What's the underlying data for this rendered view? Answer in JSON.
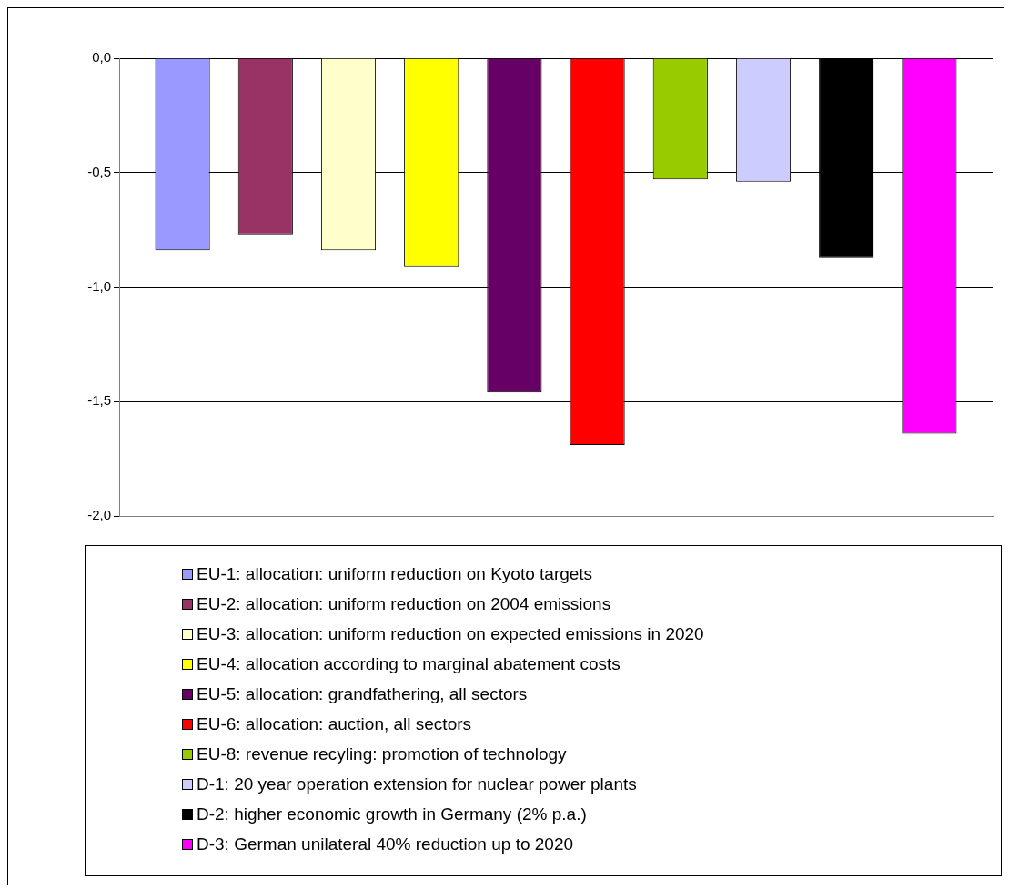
{
  "chart_data": {
    "type": "bar",
    "categories": [
      null
    ],
    "series": [
      {
        "name": "EU-1: allocation: uniform reduction on Kyoto targets",
        "color": "#9999ff",
        "values": [
          -0.84
        ]
      },
      {
        "name": "EU-2: allocation: uniform reduction on 2004 emissions",
        "color": "#993366",
        "values": [
          -0.77
        ]
      },
      {
        "name": "EU-3: allocation: uniform reduction on expected emissions in 2020",
        "color": "#ffffcc",
        "values": [
          -0.84
        ]
      },
      {
        "name": "EU-4: allocation according to marginal abatement costs",
        "color": "#ffff00",
        "values": [
          -0.91
        ]
      },
      {
        "name": "EU-5: allocation: grandfathering, all sectors",
        "color": "#660066",
        "values": [
          -1.46
        ]
      },
      {
        "name": "EU-6: allocation: auction, all sectors",
        "color": "#ff0000",
        "values": [
          -1.69
        ]
      },
      {
        "name": "EU-8: revenue recyling: promotion of technology",
        "color": "#99cc00",
        "values": [
          -0.53
        ]
      },
      {
        "name": "D-1: 20 year operation extension for nuclear power plants",
        "color": "#ccccff",
        "values": [
          -0.54
        ]
      },
      {
        "name": "D-2: higher economic growth in Germany (2% p.a.)",
        "color": "#000000",
        "values": [
          -0.87
        ]
      },
      {
        "name": "D-3: German unilateral 40% reduction up to 2020",
        "color": "#ff00ff",
        "values": [
          -1.64
        ]
      }
    ],
    "ylim": [
      -2,
      0
    ],
    "yticks": [
      {
        "value": -2,
        "label": "-2,0"
      },
      {
        "value": -1.5,
        "label": "-1,5"
      },
      {
        "value": -1,
        "label": "-1,0"
      },
      {
        "value": -0.5,
        "label": "-0,5"
      },
      {
        "value": 0,
        "label": "0,0"
      }
    ],
    "grid": "y",
    "legend": "bottom"
  }
}
